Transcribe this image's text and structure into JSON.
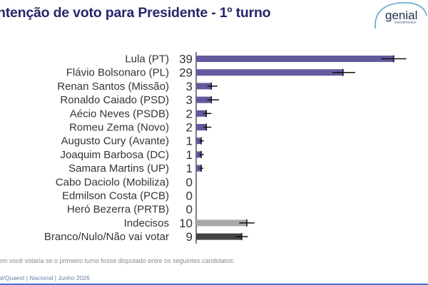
{
  "header": {
    "title": "ntenção de voto para Presidente - 1º turno",
    "logo_text": "genial",
    "logo_sub": "investimentos"
  },
  "footnote": "em você votaria se o primeiro turno fosse disputado entre os seguintes candidatos:",
  "source": "al/Quaest | Nacional | Junho 2026",
  "colors": {
    "primary_bar": "#625a9e",
    "undecided_bar": "#a8a8a8",
    "blank_bar": "#444444",
    "error_bar": "#111111",
    "title": "#23276a"
  },
  "chart_data": {
    "type": "bar",
    "orientation": "horizontal",
    "title": "ntenção de voto para Presidente - 1º turno",
    "categories": [
      "Lula (PT)",
      "Flávio Bolsonaro (PL)",
      "Renan Santos (Missão)",
      "Ronaldo Caiado (PSD)",
      "Aécio Neves (PSDB)",
      "Romeu Zema (Novo)",
      "Augusto Cury (Avante)",
      "Joaquim Barbosa (DC)",
      "Samara Martins (UP)",
      "Cabo Daciolo (Mobiliza)",
      "Edmilson Costa (PCB)",
      "Heró Bezerra (PRTB)",
      "Indecisos",
      "Branco/Nulo/Não vai votar"
    ],
    "values": [
      39,
      29,
      3,
      3,
      2,
      2,
      1,
      1,
      1,
      0,
      0,
      0,
      10,
      9
    ],
    "error_lower": [
      36.5,
      26.9,
      2.2,
      2.2,
      1.4,
      1.4,
      0.6,
      0.6,
      0.6,
      0,
      0,
      0,
      8.5,
      7.8
    ],
    "error_upper": [
      41.5,
      31.4,
      4.2,
      4.5,
      3.0,
      3.0,
      1.5,
      1.5,
      1.4,
      0,
      0,
      0,
      11.5,
      10.2
    ],
    "bar_colors": [
      "#625a9e",
      "#625a9e",
      "#625a9e",
      "#625a9e",
      "#625a9e",
      "#625a9e",
      "#625a9e",
      "#625a9e",
      "#625a9e",
      "#625a9e",
      "#625a9e",
      "#625a9e",
      "#a8a8a8",
      "#444444"
    ],
    "xlim": [
      0,
      45
    ],
    "grid": false,
    "legend": "none"
  }
}
